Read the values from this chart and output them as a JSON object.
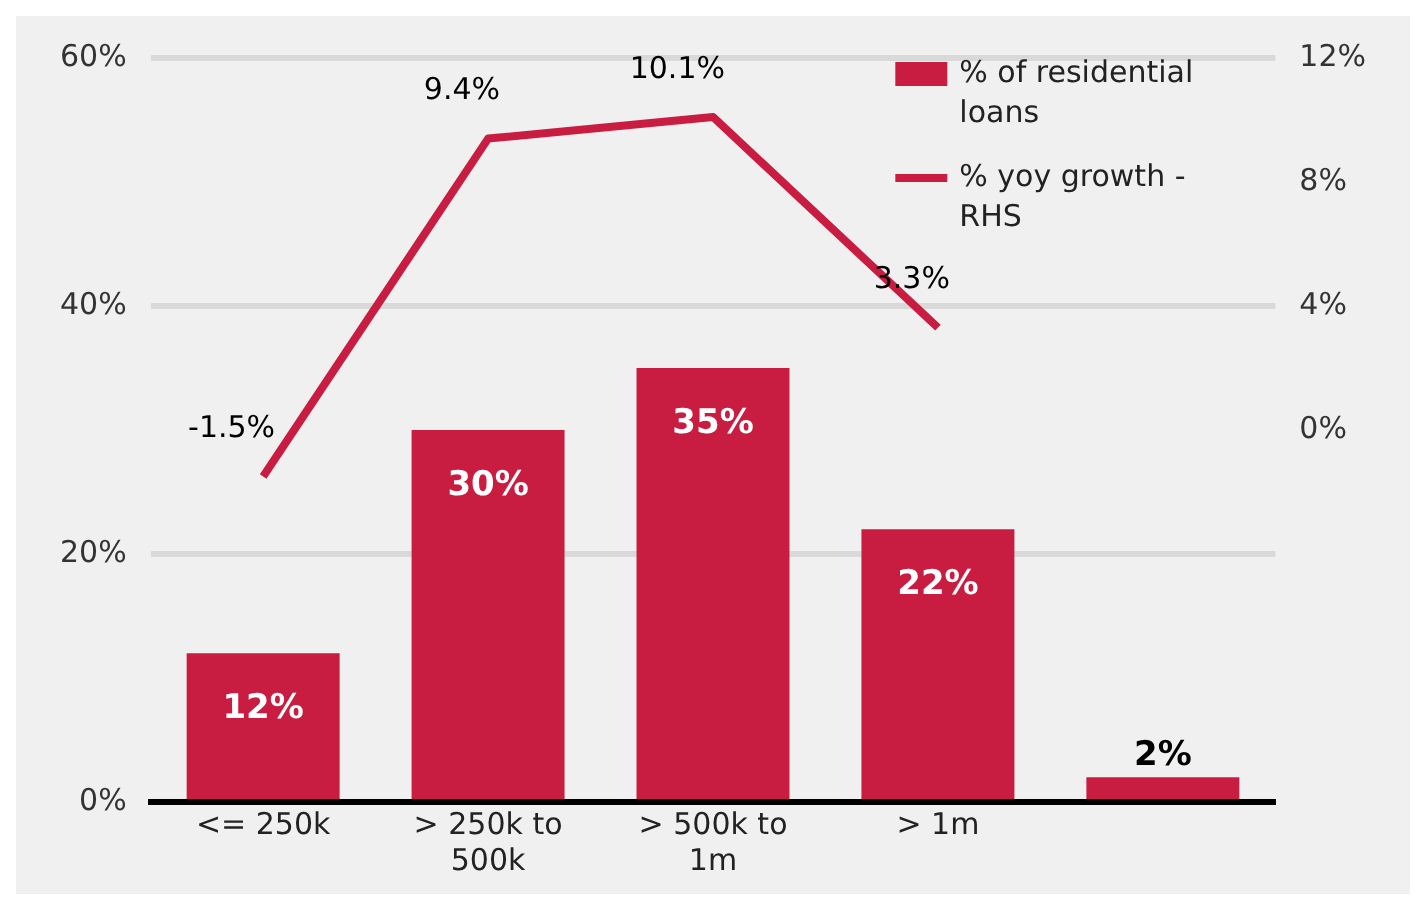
{
  "chart_data": {
    "type": "bar",
    "categories": [
      "<= 250k",
      "> 250k to 500k",
      "> 500k to 1m",
      "> 1m",
      null
    ],
    "series": [
      {
        "name": "% of residential loans",
        "color": "#c81d40",
        "values": [
          12,
          30,
          35,
          22,
          2
        ],
        "value_labels": [
          "12%",
          "30%",
          "35%",
          "22%",
          "2%"
        ]
      },
      {
        "name": "% yoy growth - RHS",
        "type": "line",
        "axis": "y2",
        "color": "#c81d40",
        "values": [
          -1.5,
          9.4,
          10.1,
          3.3,
          null
        ],
        "value_labels": [
          "-1.5%",
          "9.4%",
          "10.1%",
          "3.3%",
          null
        ]
      }
    ],
    "ylim": [
      0,
      60
    ],
    "yticks": [
      {
        "value": 0,
        "label": "0%"
      },
      {
        "value": 20,
        "label": "20%"
      },
      {
        "value": 40,
        "label": "40%"
      },
      {
        "value": 60,
        "label": "60%"
      }
    ],
    "y2lim": [
      -12,
      12
    ],
    "y2ticks": [
      {
        "value": 0,
        "label": "0%"
      },
      {
        "value": 4,
        "label": "4%"
      },
      {
        "value": 8,
        "label": "8%"
      },
      {
        "value": 12,
        "label": "12%"
      }
    ],
    "grid": "y",
    "legend": "top right",
    "marker": "none",
    "line_style": "solid"
  }
}
